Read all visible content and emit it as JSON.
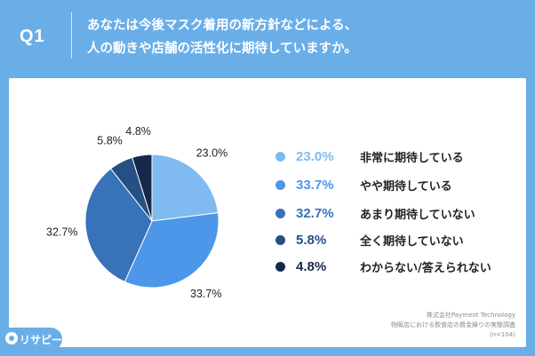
{
  "header": {
    "q_label": "Q1",
    "question_line1": "あなたは今後マスク着用の新方針などによる、",
    "question_line2": "人の動きや店舗の活性化に期待していますか。"
  },
  "chart_data": {
    "type": "pie",
    "title": "",
    "start": "12 o'clock",
    "direction": "clockwise",
    "slices": [
      {
        "label": "非常に期待している",
        "value": 23.0,
        "display": "23.0%",
        "color": "#7fbaf0"
      },
      {
        "label": "やや期待している",
        "value": 33.7,
        "display": "33.7%",
        "color": "#4d97ea"
      },
      {
        "label": "あまり期待していない",
        "value": 32.7,
        "display": "32.7%",
        "color": "#3872b9"
      },
      {
        "label": "全く期待していない",
        "value": 5.8,
        "display": "5.8%",
        "color": "#254f85"
      },
      {
        "label": "わからない/答えられない",
        "value": 4.8,
        "display": "4.8%",
        "color": "#17294a"
      }
    ]
  },
  "footer": {
    "source_line1": "株式会社Payment Technology",
    "source_line2": "物販店における飲食店の資金繰りの実態調査",
    "source_line3": "(n=104)"
  },
  "brand": {
    "name": "リサピー"
  },
  "colors": {
    "background": "#6aaee8",
    "panel": "#ffffff"
  }
}
